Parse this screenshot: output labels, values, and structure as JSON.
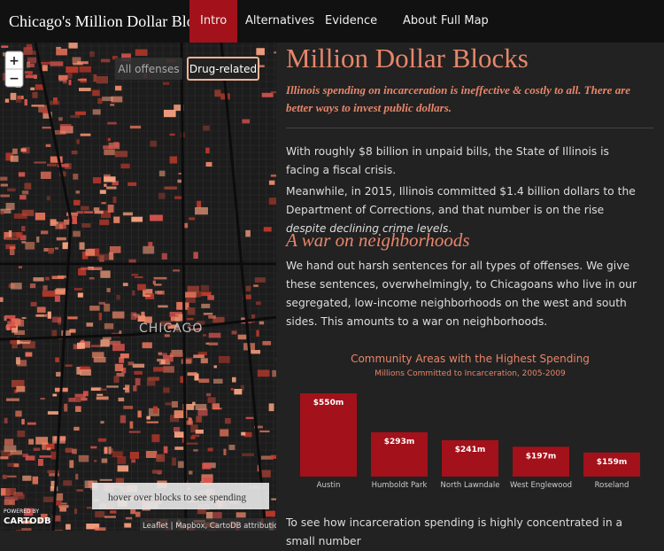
{
  "navbar": {
    "brand": "Chicago's Million Dollar Blocks",
    "links": [
      "Intro",
      "Alternatives",
      "Evidence",
      "About",
      "Full Map"
    ],
    "active": 0
  },
  "map": {
    "zoom_in": "+",
    "zoom_out": "−",
    "filters": [
      "All offenses",
      "Drug-related"
    ],
    "selected_filter": 1,
    "label": "CHICAGO",
    "hint": "hover over blocks to see spending",
    "powered_by": "POWERED BY",
    "brand": "CARTODB",
    "attribution": "Leaflet | Mapbox, CartoDB attribution"
  },
  "article": {
    "title": "Million Dollar Blocks",
    "subtitle": "Illinois spending on incarceration is ineffective & costly to all. There are better ways to invest public dollars.",
    "p1": "With roughly $8 billion in unpaid bills, the State of Illinois is facing a fiscal crisis.",
    "p2": {
      "text": "Meanwhile, in 2015, Illinois committed $1.4 billion dollars to the Department of Corrections, and that number is on the rise ",
      "em": "despite declining crime levels"
    },
    "p2_end": ".",
    "heading": "A war on neighborhoods",
    "p3": "We hand out harsh sentences for all types of offenses. We give these sentences, overwhelmingly, to Chicagoans who live in our segregated, low-income neighborhoods on the west and south sides. This amounts to a war on neighborhoods.",
    "p4": "To see how incarceration spending is highly concentrated in a small number"
  },
  "chart_data": {
    "type": "bar",
    "title": "Community Areas with the Highest Spending",
    "subtitle": "Millions Committed to Incarceration, 2005-2009",
    "categories": [
      "Austin",
      "Humboldt Park",
      "North Lawndale",
      "West Englewood",
      "Roseland"
    ],
    "values": [
      550,
      293,
      241,
      197,
      159
    ],
    "value_labels": [
      "$550m",
      "$293m",
      "$241m",
      "$197m",
      "$159m"
    ],
    "color": "#a3111a"
  }
}
